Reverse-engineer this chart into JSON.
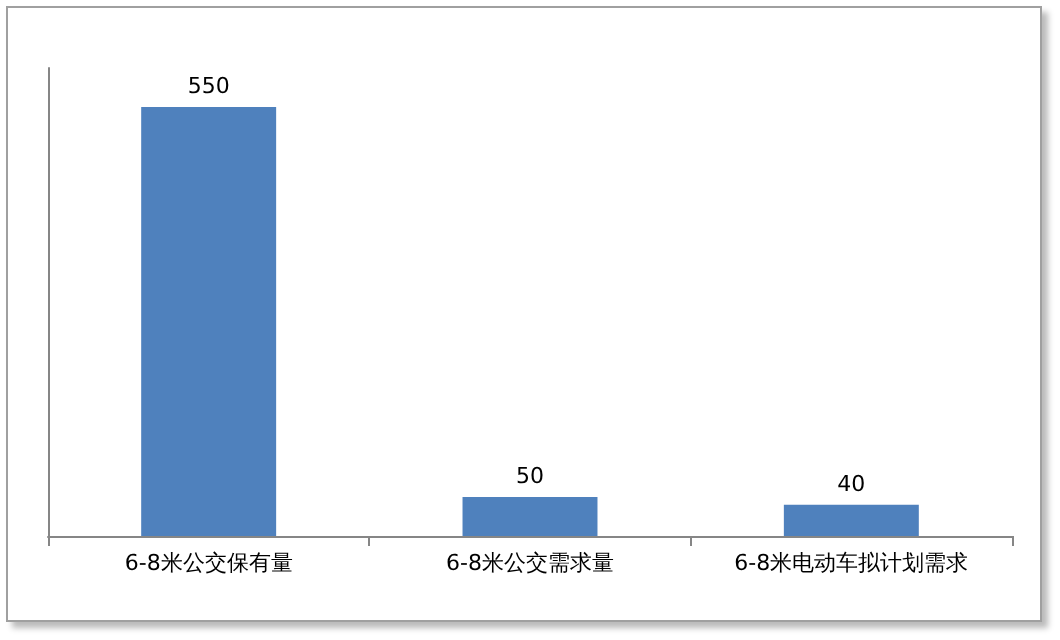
{
  "chart_data": {
    "type": "bar",
    "categories": [
      "6-8米公交保有量",
      "6-8米公交需求量",
      "6-8米电动车拟计划需求"
    ],
    "values": [
      550,
      50,
      40
    ],
    "color": "#4f81bd",
    "data_labels": true,
    "tick_labels": "x"
  }
}
